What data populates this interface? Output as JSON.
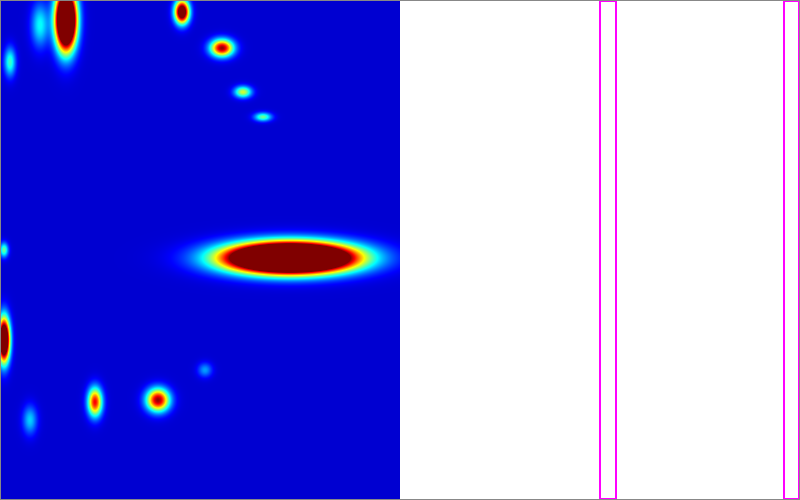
{
  "chart_data": {
    "type": "heatmap",
    "xlim": [
      0,
      800
    ],
    "ylim": [
      500,
      0
    ],
    "tick_labels": false,
    "grid": false,
    "extent": {
      "x": [
        0,
        400
      ],
      "y": [
        0,
        500
      ]
    },
    "background": 0.08,
    "color_range": [
      0,
      1
    ],
    "spots": [
      {
        "x": 290,
        "y": 258,
        "sx": 42,
        "sy": 10,
        "peak": 2.6
      },
      {
        "x": 66,
        "y": 20,
        "sx": 7,
        "sy": 20,
        "peak": 2.0
      },
      {
        "x": 182,
        "y": 12,
        "sx": 5,
        "sy": 8,
        "peak": 1.2
      },
      {
        "x": 222,
        "y": 48,
        "sx": 8,
        "sy": 6,
        "peak": 0.9
      },
      {
        "x": 243,
        "y": 92,
        "sx": 6,
        "sy": 4,
        "peak": 0.5
      },
      {
        "x": 263,
        "y": 117,
        "sx": 6,
        "sy": 3,
        "peak": 0.4
      },
      {
        "x": 4,
        "y": 340,
        "sx": 4,
        "sy": 15,
        "peak": 1.5
      },
      {
        "x": 4,
        "y": 250,
        "sx": 3,
        "sy": 5,
        "peak": 0.4
      },
      {
        "x": 10,
        "y": 62,
        "sx": 4,
        "sy": 10,
        "peak": 0.35
      },
      {
        "x": 40,
        "y": 25,
        "sx": 6,
        "sy": 15,
        "peak": 0.3
      },
      {
        "x": 95,
        "y": 402,
        "sx": 5,
        "sy": 10,
        "peak": 0.8
      },
      {
        "x": 158,
        "y": 400,
        "sx": 8,
        "sy": 8,
        "peak": 0.9
      },
      {
        "x": 205,
        "y": 370,
        "sx": 5,
        "sy": 5,
        "peak": 0.2
      },
      {
        "x": 30,
        "y": 420,
        "sx": 5,
        "sy": 10,
        "peak": 0.25
      }
    ],
    "regions": {
      "color": "#ff00ff",
      "x": [
        [
          599,
          615
        ],
        [
          783,
          798
        ]
      ]
    }
  }
}
